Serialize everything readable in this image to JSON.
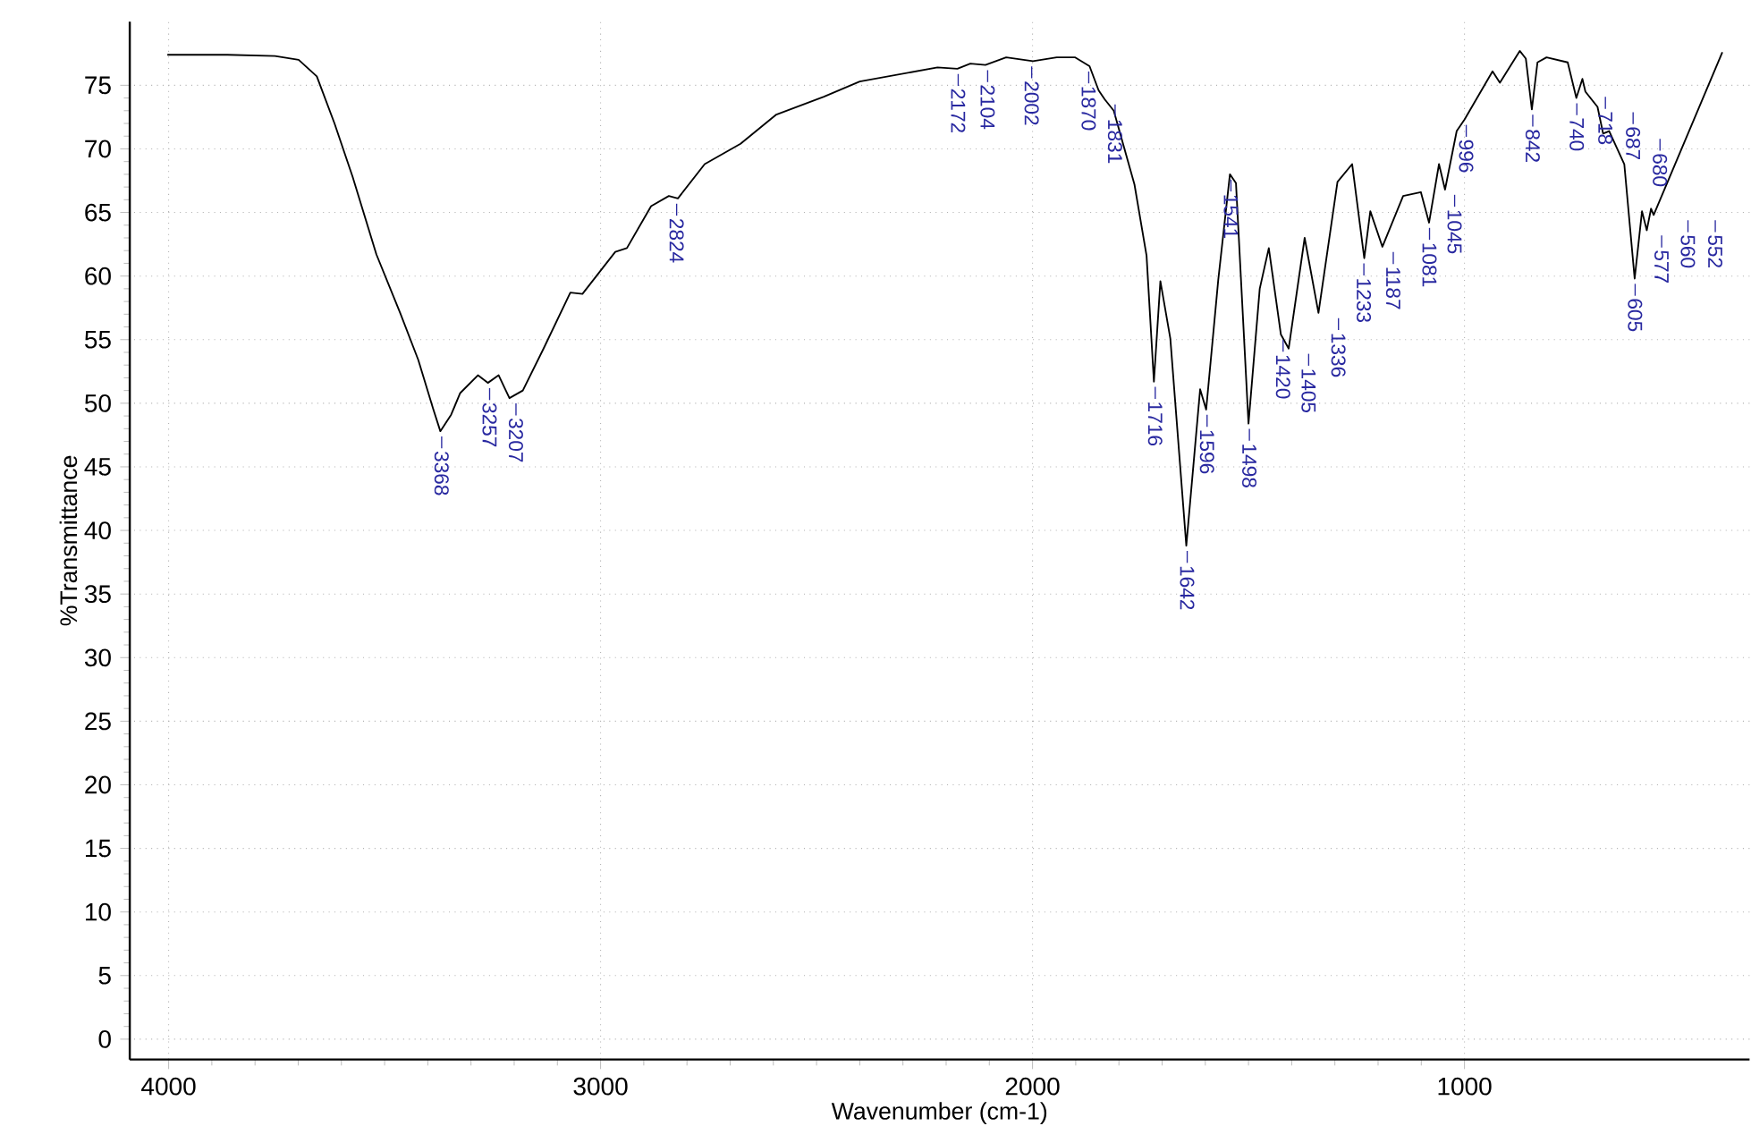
{
  "chart_data": {
    "type": "line",
    "xlabel": "Wavenumber (cm-1)",
    "ylabel": "%Transmittance",
    "xlim": [
      4090,
      340
    ],
    "ylim": [
      -1.6,
      80
    ],
    "xticks": [
      4000,
      3000,
      2000,
      1000
    ],
    "yticks": [
      0,
      5,
      10,
      15,
      20,
      25,
      30,
      35,
      40,
      45,
      50,
      55,
      60,
      65,
      70,
      75
    ],
    "grid": true,
    "series": [
      {
        "color": "#000000",
        "x": [
          4003,
          3864,
          3754,
          3699,
          3657,
          3616,
          3574,
          3519,
          3464,
          3422,
          3388,
          3371,
          3346,
          3325,
          3284,
          3261,
          3236,
          3211,
          3180,
          3132,
          3070,
          3042,
          2966,
          2939,
          2883,
          2842,
          2821,
          2759,
          2676,
          2593,
          2483,
          2400,
          2220,
          2174,
          2144,
          2109,
          2061,
          1999,
          1944,
          1902,
          1868,
          1847,
          1833,
          1812,
          1764,
          1736,
          1719,
          1704,
          1681,
          1644,
          1612,
          1598,
          1570,
          1543,
          1529,
          1500,
          1474,
          1453,
          1425,
          1407,
          1370,
          1338,
          1294,
          1260,
          1232,
          1218,
          1190,
          1142,
          1101,
          1082,
          1059,
          1045,
          1018,
          1000,
          935,
          918,
          872,
          858,
          844,
          831,
          810,
          761,
          741,
          727,
          720,
          692,
          679,
          665,
          630,
          606,
          589,
          578,
          568,
          562,
          403
        ],
        "values": [
          77.4,
          77.4,
          77.3,
          77.0,
          75.7,
          72.0,
          67.8,
          61.7,
          57.1,
          53.4,
          49.6,
          47.8,
          49.1,
          50.8,
          52.2,
          51.6,
          52.2,
          50.4,
          51.0,
          54.3,
          58.7,
          58.6,
          61.9,
          62.2,
          65.5,
          66.3,
          66.1,
          68.8,
          70.4,
          72.7,
          74.1,
          75.3,
          76.4,
          76.3,
          76.7,
          76.6,
          77.2,
          76.9,
          77.2,
          77.2,
          76.5,
          74.6,
          73.9,
          73.0,
          67.2,
          61.6,
          51.7,
          59.6,
          55.1,
          38.8,
          51.1,
          49.5,
          59.7,
          68.0,
          67.3,
          48.4,
          59.0,
          62.2,
          55.4,
          54.3,
          63.0,
          57.1,
          67.4,
          68.8,
          61.4,
          65.1,
          62.3,
          66.3,
          66.6,
          64.2,
          68.8,
          66.8,
          71.4,
          72.3,
          76.1,
          75.2,
          77.7,
          77.1,
          73.1,
          76.8,
          77.2,
          76.8,
          74.0,
          75.5,
          74.5,
          73.3,
          71.2,
          71.4,
          68.8,
          59.8,
          65.1,
          63.6,
          65.3,
          64.8,
          77.6
        ]
      }
    ],
    "annotations": [
      {
        "text": "3368",
        "x": 3368,
        "y": 47.8
      },
      {
        "text": "3257",
        "x": 3257,
        "y": 51.6
      },
      {
        "text": "3207",
        "x": 3207,
        "y": 50.4
      },
      {
        "text": "2824",
        "x": 2824,
        "y": 66.1
      },
      {
        "text": "2172",
        "x": 2172,
        "y": 76.3
      },
      {
        "text": "2104",
        "x": 2104,
        "y": 76.6
      },
      {
        "text": "2002",
        "x": 2002,
        "y": 76.9
      },
      {
        "text": "1870",
        "x": 1870,
        "y": 76.5
      },
      {
        "text": "1831",
        "x": 1831,
        "y": 73.9
      },
      {
        "text": "1716",
        "x": 1716,
        "y": 51.7
      },
      {
        "text": "1642",
        "x": 1642,
        "y": 38.8
      },
      {
        "text": "1596",
        "x": 1596,
        "y": 49.5
      },
      {
        "text": "1541",
        "x": 1541,
        "y": 68.0
      },
      {
        "text": "1498",
        "x": 1498,
        "y": 48.4
      },
      {
        "text": "1420",
        "x": 1420,
        "y": 55.4
      },
      {
        "text": "1405",
        "x": 1405,
        "y": 54.3
      },
      {
        "text": "1336",
        "x": 1336,
        "y": 57.1
      },
      {
        "text": "1233",
        "x": 1233,
        "y": 61.4
      },
      {
        "text": "1187",
        "x": 1187,
        "y": 62.3
      },
      {
        "text": "1081",
        "x": 1081,
        "y": 64.2
      },
      {
        "text": "1045",
        "x": 1045,
        "y": 66.8
      },
      {
        "text": "996",
        "x": 996,
        "y": 72.3
      },
      {
        "text": "842",
        "x": 842,
        "y": 73.1
      },
      {
        "text": "740",
        "x": 740,
        "y": 74.0
      },
      {
        "text": "718",
        "x": 718,
        "y": 74.5
      },
      {
        "text": "687",
        "x": 687,
        "y": 73.3
      },
      {
        "text": "680",
        "x": 680,
        "y": 71.2
      },
      {
        "text": "605",
        "x": 605,
        "y": 59.8
      },
      {
        "text": "577",
        "x": 577,
        "y": 63.6
      },
      {
        "text": "560",
        "x": 560,
        "y": 64.8
      },
      {
        "text": "552",
        "x": 552,
        "y": 64.8
      }
    ]
  }
}
